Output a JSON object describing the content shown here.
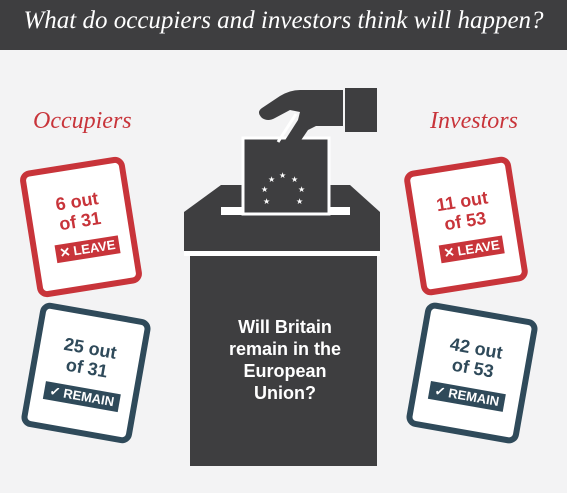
{
  "header": {
    "title": "What do occupiers and investors think will happen?"
  },
  "occupiers": {
    "label": "Occupiers",
    "leave": {
      "text_line1": "6 out",
      "text_line2": "of 31",
      "badge": "LEAVE",
      "badge_icon": "✕"
    },
    "remain": {
      "text_line1": "25 out",
      "text_line2": "of 31",
      "badge": "REMAIN",
      "badge_icon": "✓"
    }
  },
  "investors": {
    "label": "Investors",
    "leave": {
      "text_line1": "11 out",
      "text_line2": "of 53",
      "badge": "LEAVE",
      "badge_icon": "✕"
    },
    "remain": {
      "text_line1": "42 out",
      "text_line2": "of 53",
      "badge": "REMAIN",
      "badge_icon": "✓"
    }
  },
  "ballot_box": {
    "question_line1": "Will Britain",
    "question_line2": "remain in the",
    "question_line3": "European",
    "question_line4": "Union?"
  },
  "colors": {
    "header_bg": "#3e3e40",
    "leave_red": "#c8343a",
    "remain_blue": "#2f4a5a",
    "box_dark": "#3e3e40",
    "background": "#f3f3f4"
  },
  "icons": [
    "hand-icon",
    "ballot-paper-icon",
    "eu-stars-icon",
    "ballot-box-icon",
    "cross-icon",
    "check-icon"
  ]
}
